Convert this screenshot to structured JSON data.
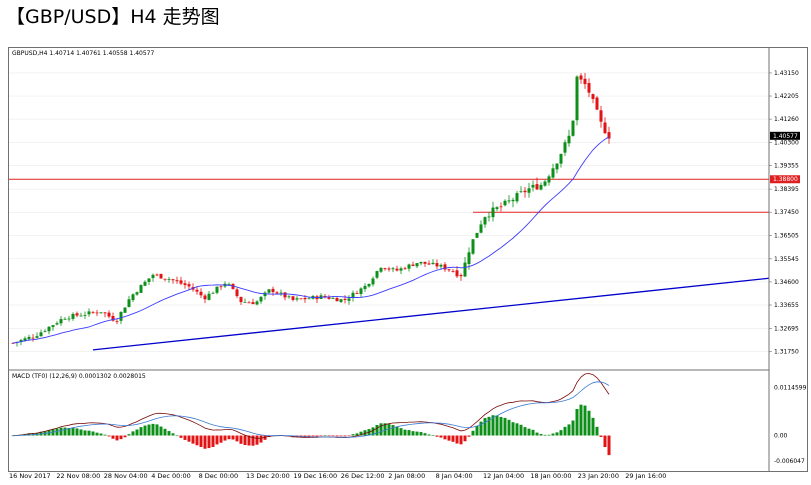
{
  "page": {
    "title": "【GBP/USD】H4 走势图"
  },
  "chart_data": {
    "type": "candlestick",
    "symbol_info": "GBPUSD,H4  1.40714  1.40761  1.40558  1.40577",
    "price_axis": {
      "ylim": [
        1.312,
        1.4372
      ],
      "ticks": [
        "1.43150",
        "1.42205",
        "1.41260",
        "1.40300",
        "1.39355",
        "1.38395",
        "1.37450",
        "1.36505",
        "1.35545",
        "1.34600",
        "1.33655",
        "1.32695",
        "1.31750"
      ],
      "current_price": "1.40577",
      "marked_level": "1.38800"
    },
    "x_axis": {
      "tick_labels": [
        "16 Nov 2017",
        "22 Nov 08:00",
        "28 Nov 04:00",
        "4 Dec 00:00",
        "8 Dec 00:00",
        "13 Dec 20:00",
        "19 Dec 16:00",
        "26 Dec 12:00",
        "2 Jan 08:00",
        "8 Jan 04:00",
        "12 Jan 04:00",
        "18 Jan 00:00",
        "23 Jan 20:00",
        "29 Jan 16:00"
      ]
    },
    "horizontal_levels": [
      {
        "price": 1.388,
        "color": "#e02020",
        "span": "full"
      },
      {
        "price": 1.3745,
        "color": "#e02020",
        "span": "from 12 Jan"
      }
    ],
    "trendline": {
      "from_price": 1.3182,
      "to_price": 1.3475,
      "color": "#0000cc"
    },
    "anchors": [
      {
        "x": 0.0,
        "close": 1.321
      },
      {
        "x": 0.03,
        "close": 1.324
      },
      {
        "x": 0.07,
        "close": 1.3315
      },
      {
        "x": 0.12,
        "close": 1.334
      },
      {
        "x": 0.14,
        "close": 1.33
      },
      {
        "x": 0.16,
        "close": 1.34
      },
      {
        "x": 0.19,
        "close": 1.349
      },
      {
        "x": 0.21,
        "close": 1.3475
      },
      {
        "x": 0.24,
        "close": 1.344
      },
      {
        "x": 0.26,
        "close": 1.3395
      },
      {
        "x": 0.29,
        "close": 1.346
      },
      {
        "x": 0.31,
        "close": 1.338
      },
      {
        "x": 0.33,
        "close": 1.3375
      },
      {
        "x": 0.35,
        "close": 1.343
      },
      {
        "x": 0.38,
        "close": 1.3385
      },
      {
        "x": 0.42,
        "close": 1.34
      },
      {
        "x": 0.45,
        "close": 1.3385
      },
      {
        "x": 0.48,
        "close": 1.3445
      },
      {
        "x": 0.5,
        "close": 1.3525
      },
      {
        "x": 0.52,
        "close": 1.3505
      },
      {
        "x": 0.55,
        "close": 1.354
      },
      {
        "x": 0.58,
        "close": 1.3525
      },
      {
        "x": 0.61,
        "close": 1.349
      },
      {
        "x": 0.62,
        "close": 1.3595
      },
      {
        "x": 0.64,
        "close": 1.373
      },
      {
        "x": 0.67,
        "close": 1.378
      },
      {
        "x": 0.7,
        "close": 1.384
      },
      {
        "x": 0.72,
        "close": 1.386
      },
      {
        "x": 0.74,
        "close": 1.396
      },
      {
        "x": 0.76,
        "close": 1.408
      },
      {
        "x": 0.765,
        "close": 1.43
      },
      {
        "x": 0.78,
        "close": 1.426
      },
      {
        "x": 0.8,
        "close": 1.41
      },
      {
        "x": 0.81,
        "close": 1.4058
      }
    ],
    "candle_count": 150,
    "moving_average": {
      "color": "#3b3bff"
    },
    "macd": {
      "label": "MACD (TF0) (12,26,9) 0.0001302 0.0028015",
      "ticks": [
        "0.0114599",
        "0.00",
        "-0.006047"
      ],
      "ylim": [
        -0.007,
        0.012
      ],
      "macd_color": "#7a0a0a",
      "signal_color": "#3a7bd5",
      "histogram_up_color": "#0e8f1a",
      "histogram_down_color": "#e01414"
    },
    "colors": {
      "bull": "#0e8f1a",
      "bear": "#e01414",
      "grid": "#e6e6e6",
      "frame": "#707070"
    }
  }
}
